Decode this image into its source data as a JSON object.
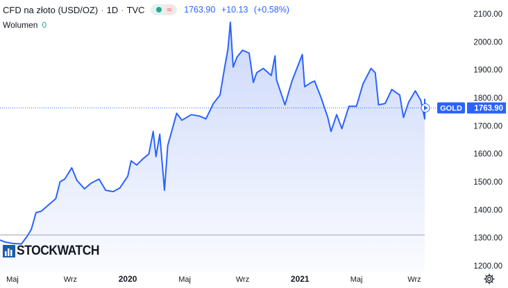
{
  "legend": {
    "symbol": "CFD na złoto (USD/OZ)",
    "interval": "1D",
    "source": "TVC",
    "price": "1763.90",
    "change": "+10.13",
    "change_pct": "(+0.58%)",
    "status_icon": "market-open-dot-icon",
    "wave_glyph": "≈"
  },
  "volume": {
    "label": "Wolumen",
    "value": "0"
  },
  "watermark": {
    "text": "STOCKWATCH"
  },
  "price_tag": {
    "label": "GOLD",
    "value": "1763.90"
  },
  "colors": {
    "line": "#2962ff",
    "axis_text": "#131722",
    "tag_bg": "#2962ff",
    "area": "#d6e0fb"
  },
  "chart_data": {
    "type": "area",
    "symbol": "GOLD",
    "ylim": [
      1200,
      2100
    ],
    "y_ticks": [
      1200,
      1300,
      1400,
      1500,
      1600,
      1700,
      1800,
      1900,
      2000,
      2100
    ],
    "y_tick_labels": [
      "1200.00",
      "1300.00",
      "1400.00",
      "1500.00",
      "1600.00",
      "1700.00",
      "1800.00",
      "1900.00",
      "2000.00",
      "2100.00"
    ],
    "x_range": [
      "2019-04-01",
      "2021-10-20"
    ],
    "x_ticks": [
      {
        "date": "2019-05-01",
        "label": "Maj"
      },
      {
        "date": "2019-09-01",
        "label": "Wrz"
      },
      {
        "date": "2020-01-01",
        "label": "2020"
      },
      {
        "date": "2020-05-01",
        "label": "Maj"
      },
      {
        "date": "2020-09-01",
        "label": "Wrz"
      },
      {
        "date": "2021-01-01",
        "label": "2021"
      },
      {
        "date": "2021-05-01",
        "label": "Maj"
      },
      {
        "date": "2021-09-01",
        "label": "Wrz"
      }
    ],
    "last_price": 1763.9,
    "reference_level": 1310,
    "points": [
      [
        "2019-04-01",
        1292
      ],
      [
        "2019-04-15",
        1285
      ],
      [
        "2019-05-01",
        1280
      ],
      [
        "2019-05-20",
        1278
      ],
      [
        "2019-06-01",
        1305
      ],
      [
        "2019-06-10",
        1330
      ],
      [
        "2019-06-20",
        1390
      ],
      [
        "2019-07-01",
        1395
      ],
      [
        "2019-07-15",
        1415
      ],
      [
        "2019-08-01",
        1440
      ],
      [
        "2019-08-10",
        1500
      ],
      [
        "2019-08-20",
        1510
      ],
      [
        "2019-09-04",
        1550
      ],
      [
        "2019-09-15",
        1505
      ],
      [
        "2019-10-01",
        1475
      ],
      [
        "2019-10-15",
        1495
      ],
      [
        "2019-11-01",
        1510
      ],
      [
        "2019-11-15",
        1470
      ],
      [
        "2019-12-01",
        1465
      ],
      [
        "2019-12-15",
        1478
      ],
      [
        "2020-01-01",
        1520
      ],
      [
        "2020-01-08",
        1575
      ],
      [
        "2020-01-20",
        1560
      ],
      [
        "2020-02-01",
        1580
      ],
      [
        "2020-02-15",
        1600
      ],
      [
        "2020-02-24",
        1680
      ],
      [
        "2020-03-01",
        1590
      ],
      [
        "2020-03-09",
        1670
      ],
      [
        "2020-03-19",
        1470
      ],
      [
        "2020-03-26",
        1630
      ],
      [
        "2020-04-14",
        1745
      ],
      [
        "2020-04-25",
        1720
      ],
      [
        "2020-05-15",
        1740
      ],
      [
        "2020-06-01",
        1735
      ],
      [
        "2020-06-15",
        1725
      ],
      [
        "2020-07-01",
        1780
      ],
      [
        "2020-07-15",
        1810
      ],
      [
        "2020-07-24",
        1900
      ],
      [
        "2020-08-01",
        1975
      ],
      [
        "2020-08-06",
        2070
      ],
      [
        "2020-08-12",
        1910
      ],
      [
        "2020-08-20",
        1945
      ],
      [
        "2020-09-01",
        1970
      ],
      [
        "2020-09-15",
        1960
      ],
      [
        "2020-09-24",
        1855
      ],
      [
        "2020-10-01",
        1890
      ],
      [
        "2020-10-15",
        1905
      ],
      [
        "2020-11-01",
        1880
      ],
      [
        "2020-11-09",
        1950
      ],
      [
        "2020-11-12",
        1865
      ],
      [
        "2020-11-30",
        1775
      ],
      [
        "2020-12-15",
        1860
      ],
      [
        "2021-01-06",
        1955
      ],
      [
        "2021-01-11",
        1840
      ],
      [
        "2021-01-25",
        1855
      ],
      [
        "2021-02-01",
        1860
      ],
      [
        "2021-02-15",
        1800
      ],
      [
        "2021-03-01",
        1730
      ],
      [
        "2021-03-08",
        1680
      ],
      [
        "2021-03-20",
        1740
      ],
      [
        "2021-03-31",
        1690
      ],
      [
        "2021-04-15",
        1770
      ],
      [
        "2021-05-01",
        1770
      ],
      [
        "2021-05-15",
        1850
      ],
      [
        "2021-06-01",
        1905
      ],
      [
        "2021-06-10",
        1890
      ],
      [
        "2021-06-17",
        1775
      ],
      [
        "2021-07-01",
        1780
      ],
      [
        "2021-07-15",
        1830
      ],
      [
        "2021-08-01",
        1810
      ],
      [
        "2021-08-09",
        1730
      ],
      [
        "2021-08-20",
        1785
      ],
      [
        "2021-09-03",
        1825
      ],
      [
        "2021-09-15",
        1790
      ],
      [
        "2021-09-29",
        1725
      ],
      [
        "2021-10-05",
        1760
      ],
      [
        "2021-10-14",
        1795
      ],
      [
        "2021-10-20",
        1764
      ]
    ]
  }
}
